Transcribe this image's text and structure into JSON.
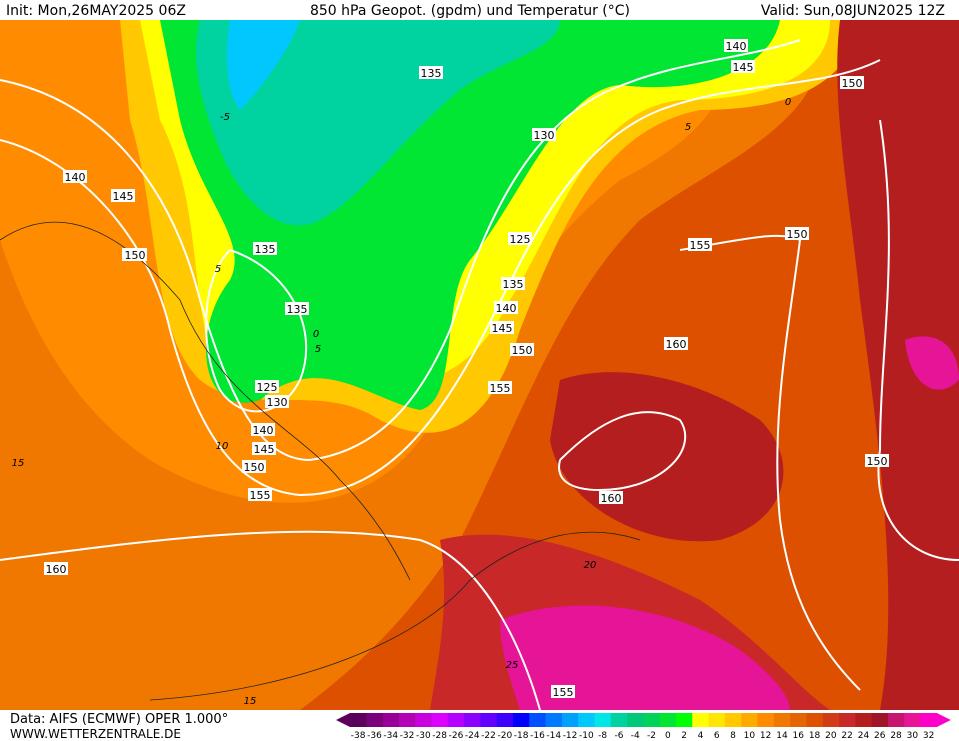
{
  "header": {
    "init": "Init: Mon,26MAY2025 06Z",
    "title": "850 hPa Geopot. (gpdm) und Temperatur (°C)",
    "valid": "Valid: Sun,08JUN2025 12Z"
  },
  "map": {
    "geopotential_labels": [
      "140",
      "145",
      "150",
      "135",
      "135",
      "135",
      "130",
      "125",
      "135",
      "140",
      "145",
      "150",
      "155",
      "125",
      "130",
      "140",
      "145",
      "150",
      "155",
      "160",
      "150",
      "155",
      "160",
      "160",
      "150",
      "150",
      "140",
      "145",
      "150",
      "155"
    ],
    "temperature_labels": [
      "0",
      "5",
      "-5",
      "0",
      "5",
      "10",
      "15",
      "20",
      "25",
      "15",
      "5"
    ]
  },
  "footer": {
    "data": "Data: AIFS (ECMWF) OPER 1.000°",
    "site": "WWW.WETTERZENTRALE.DE"
  },
  "legend": {
    "ticks": [
      -38,
      -36,
      -34,
      -32,
      -30,
      -28,
      -26,
      -24,
      -22,
      -20,
      -18,
      -16,
      -14,
      -12,
      -10,
      -8,
      -6,
      -4,
      -2,
      0,
      2,
      4,
      6,
      8,
      10,
      12,
      14,
      16,
      18,
      20,
      22,
      24,
      26,
      28,
      30,
      32
    ],
    "colors": [
      "#5a005a",
      "#780078",
      "#960096",
      "#b400b4",
      "#c800dc",
      "#dc00ff",
      "#b400ff",
      "#8c00ff",
      "#6400ff",
      "#3c00ff",
      "#0000ff",
      "#0050ff",
      "#0078ff",
      "#00a0ff",
      "#00c8ff",
      "#00e6e6",
      "#00d2a0",
      "#00c878",
      "#00d25a",
      "#00e632",
      "#00ff00",
      "#ffff00",
      "#ffe600",
      "#ffc800",
      "#ffaa00",
      "#ff8c00",
      "#f07800",
      "#e66400",
      "#dc5000",
      "#d23c14",
      "#c82828",
      "#b41e1e",
      "#a01428",
      "#c8146e",
      "#e61496",
      "#ff00c8"
    ]
  }
}
